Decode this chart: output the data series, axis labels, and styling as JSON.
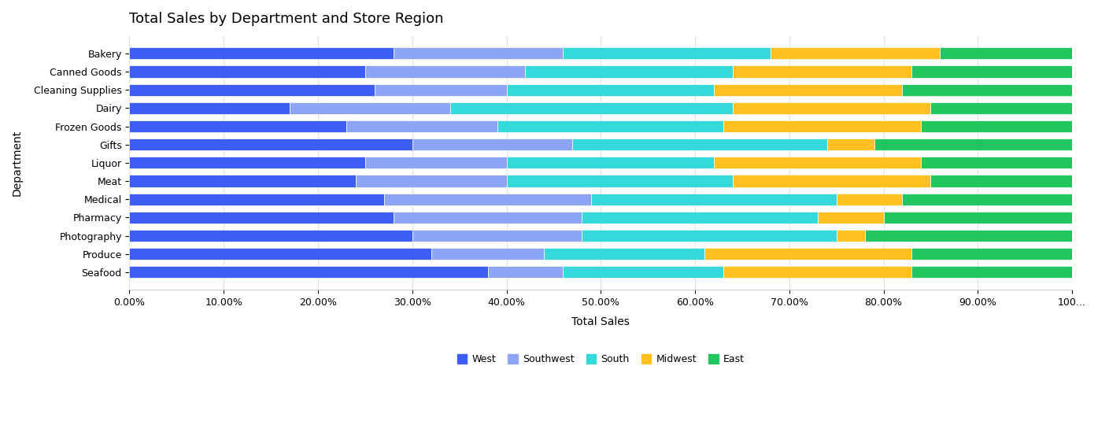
{
  "title": "Total Sales by Department and Store Region",
  "xlabel": "Total Sales",
  "ylabel": "Department",
  "categories": [
    "Bakery",
    "Canned Goods",
    "Cleaning Supplies",
    "Dairy",
    "Frozen Goods",
    "Gifts",
    "Liquor",
    "Meat",
    "Medical",
    "Pharmacy",
    "Photography",
    "Produce",
    "Seafood"
  ],
  "regions": [
    "West",
    "Southwest",
    "South",
    "Midwest",
    "East"
  ],
  "colors": {
    "West": "#3D5EF5",
    "Southwest": "#8EA4F5",
    "South": "#36D9D9",
    "Midwest": "#FFC020",
    "East": "#22C55E"
  },
  "data": {
    "Bakery": [
      28,
      18,
      22,
      18,
      14
    ],
    "Canned Goods": [
      25,
      17,
      22,
      19,
      17
    ],
    "Cleaning Supplies": [
      26,
      14,
      22,
      20,
      18
    ],
    "Dairy": [
      17,
      17,
      30,
      21,
      15
    ],
    "Frozen Goods": [
      23,
      16,
      24,
      21,
      16
    ],
    "Gifts": [
      30,
      17,
      27,
      5,
      21
    ],
    "Liquor": [
      25,
      15,
      22,
      22,
      16
    ],
    "Meat": [
      24,
      16,
      24,
      21,
      15
    ],
    "Medical": [
      27,
      22,
      26,
      7,
      18
    ],
    "Pharmacy": [
      28,
      20,
      25,
      7,
      20
    ],
    "Photography": [
      30,
      18,
      27,
      3,
      22
    ],
    "Produce": [
      32,
      12,
      17,
      22,
      17
    ],
    "Seafood": [
      38,
      8,
      17,
      20,
      17
    ]
  },
  "bg_color": "#FFFFFF",
  "panel_color": "#FFFFFF",
  "grid_color": "#E0E0E0",
  "tick_label_size": 9,
  "title_size": 13,
  "axis_label_size": 10,
  "legend_size": 9,
  "bar_height": 0.65,
  "figsize": [
    13.95,
    5.35
  ],
  "dpi": 100
}
